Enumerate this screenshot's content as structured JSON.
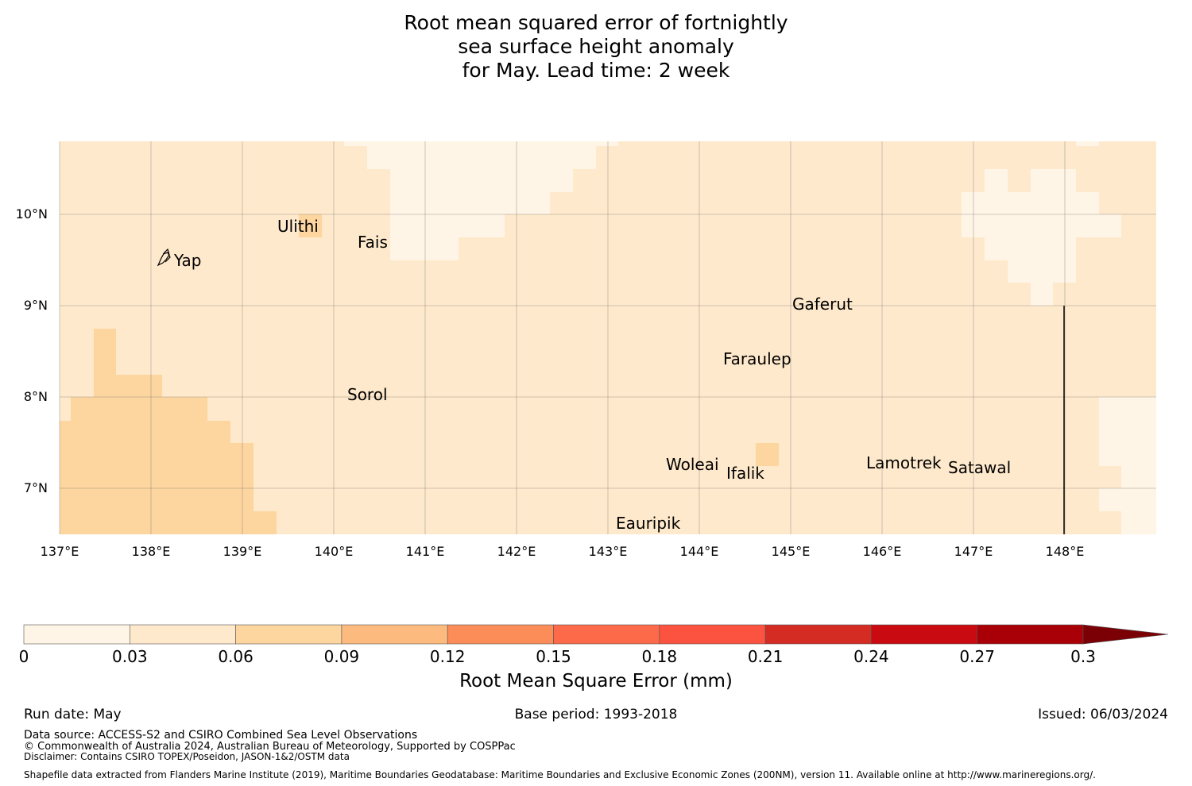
{
  "title": {
    "line1": "Root mean squared error of fortnightly",
    "line2": "sea surface height anomaly",
    "line3": "for May. Lead time: 2 week"
  },
  "map": {
    "lon_range": [
      137,
      149
    ],
    "lat_range": [
      6.5,
      10.8
    ],
    "lon_ticks": [
      "137°E",
      "138°E",
      "139°E",
      "140°E",
      "141°E",
      "142°E",
      "143°E",
      "144°E",
      "145°E",
      "146°E",
      "147°E",
      "148°E"
    ],
    "lat_ticks": [
      "10°N",
      "9°N",
      "8°N",
      "7°N"
    ],
    "gridlines": true,
    "places": [
      {
        "name": "Ulithi",
        "lon": 139.75,
        "lat": 10.0
      },
      {
        "name": "Fais",
        "lon": 140.45,
        "lat": 9.75
      },
      {
        "name": "Yap",
        "lon": 138.1,
        "lat": 9.55
      },
      {
        "name": "Gaferut",
        "lon": 145.3,
        "lat": 9.05
      },
      {
        "name": "Faraulep",
        "lon": 144.6,
        "lat": 8.45
      },
      {
        "name": "Sorol",
        "lon": 140.4,
        "lat": 8.05
      },
      {
        "name": "Woleai",
        "lon": 143.9,
        "lat": 7.3
      },
      {
        "name": "Ifalik",
        "lon": 144.45,
        "lat": 7.2
      },
      {
        "name": "Lamotrek",
        "lon": 146.3,
        "lat": 7.4
      },
      {
        "name": "Satawal",
        "lon": 147.0,
        "lat": 7.3
      },
      {
        "name": "Eauripik",
        "lon": 143.4,
        "lat": 6.7
      }
    ],
    "colors": {
      "band_0_003": "#fff5e6",
      "band_003_006": "#fee9cc",
      "band_006_009": "#fdd59f"
    }
  },
  "colorbar": {
    "ticks": [
      "0",
      "0.03",
      "0.06",
      "0.09",
      "0.12",
      "0.15",
      "0.18",
      "0.21",
      "0.24",
      "0.27",
      "0.3"
    ],
    "colors": [
      "#fff5e6",
      "#fee9cc",
      "#fdd59f",
      "#fdba7f",
      "#fc8d59",
      "#fd6a4a",
      "#fb5340",
      "#d42b23",
      "#c90a10",
      "#a90008",
      "#7a0005"
    ],
    "label": "Root Mean Square Error (mm)",
    "extend": "max"
  },
  "footer": {
    "run_date": "Run date: May",
    "base_period": "Base period: 1993-2018",
    "issued": "Issued: 06/03/2024",
    "data_source": "Data source: ACCESS-S2 and CSIRO Combined Sea Level Observations",
    "copyright": "© Commonwealth of Australia 2024, Australian Bureau of Meteorology, Supported by COSPPac",
    "disclaimer": "Disclaimer: Contains CSIRO TOPEX/Poseidon, JASON-1&2/OSTM data",
    "shapefile": "Shapefile data extracted from Flanders Marine Institute (2019), Maritime Boundaries Geodatabase: Maritime Boundaries and Exclusive Economic Zones (200NM), version 11. Available online at http://www.marineregions.org/."
  }
}
